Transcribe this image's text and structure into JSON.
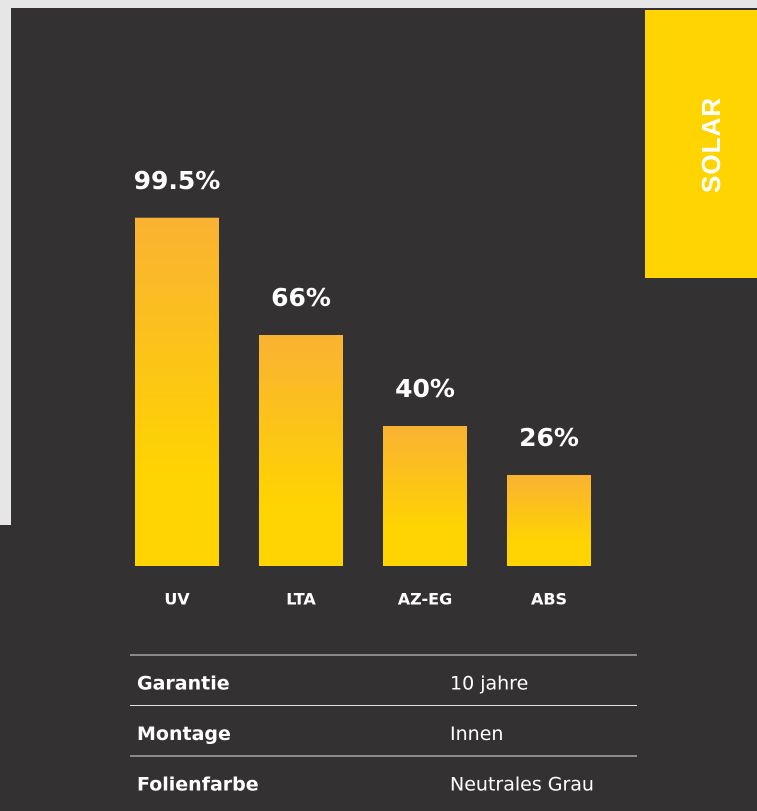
{
  "badge": "SOLAR",
  "chart_data": {
    "type": "bar",
    "categories": [
      "UV",
      "LTA",
      "AZ-EG",
      "ABS"
    ],
    "values": [
      99.5,
      66,
      40,
      26
    ],
    "value_labels": [
      "99.5%",
      "66%",
      "40%",
      "26%"
    ],
    "color": "#ffd400"
  },
  "table": {
    "rows": [
      [
        "Garantie",
        "10 jahre"
      ],
      [
        "Montage",
        "Innen"
      ],
      [
        "Folienfarbe",
        "Neutrales Grau"
      ]
    ]
  }
}
